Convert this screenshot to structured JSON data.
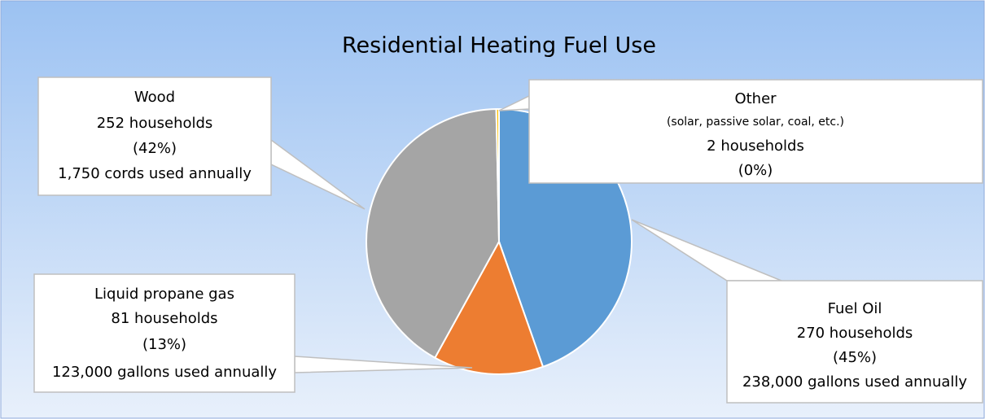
{
  "chart_data": {
    "type": "pie",
    "title": "Residential Heating Fuel Use",
    "categories": [
      "Fuel Oil",
      "Liquid propane gas",
      "Wood",
      "Other"
    ],
    "values": [
      270,
      81,
      252,
      2
    ],
    "value_labels": [
      "270 households",
      "81 households",
      "252 households",
      "2 households"
    ],
    "shares": [
      45,
      13,
      42,
      0
    ],
    "share_labels": [
      "(45%)",
      "(13%)",
      "(42%)",
      "(0%)"
    ],
    "notes": [
      null,
      null,
      null,
      "(solar, passive solar, coal, etc.)"
    ],
    "usage": [
      "238,000 gallons used annually",
      "123,000 gallons used annually",
      "1,750 cords used annually",
      null
    ],
    "colors": [
      "#5b9bd5",
      "#ed7d31",
      "#a5a5a5",
      "#ffc000"
    ]
  }
}
